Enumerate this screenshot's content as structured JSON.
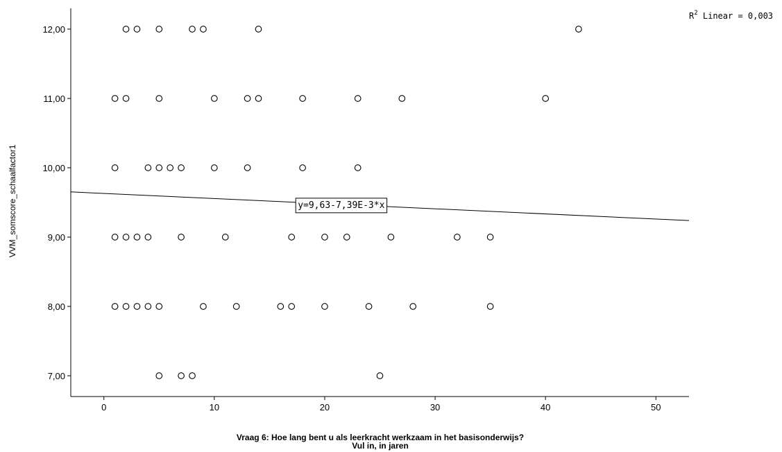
{
  "chart_data": {
    "type": "scatter",
    "xlabel_line1": "Vraag 6: Hoe lang bent u als leerkracht werkzaam in het basisonderwijs?",
    "xlabel_line2": "Vul in, in jaren",
    "ylabel": "VVM_somscore_schaalfactor1",
    "xlim": [
      -3,
      53
    ],
    "ylim": [
      6.7,
      12.3
    ],
    "xticks": [
      0,
      10,
      20,
      30,
      40,
      50
    ],
    "xtick_labels": [
      "0",
      "10",
      "20",
      "30",
      "40",
      "50"
    ],
    "yticks": [
      7,
      8,
      9,
      10,
      11,
      12
    ],
    "ytick_labels": [
      "7,00",
      "8,00",
      "9,00",
      "10,00",
      "11,00",
      "12,00"
    ],
    "grid": false,
    "points": [
      {
        "x": 2,
        "y": 12
      },
      {
        "x": 3,
        "y": 12
      },
      {
        "x": 5,
        "y": 12
      },
      {
        "x": 8,
        "y": 12
      },
      {
        "x": 9,
        "y": 12
      },
      {
        "x": 14,
        "y": 12
      },
      {
        "x": 43,
        "y": 12
      },
      {
        "x": 1,
        "y": 11
      },
      {
        "x": 2,
        "y": 11
      },
      {
        "x": 5,
        "y": 11
      },
      {
        "x": 10,
        "y": 11
      },
      {
        "x": 13,
        "y": 11
      },
      {
        "x": 14,
        "y": 11
      },
      {
        "x": 18,
        "y": 11
      },
      {
        "x": 23,
        "y": 11
      },
      {
        "x": 27,
        "y": 11
      },
      {
        "x": 40,
        "y": 11
      },
      {
        "x": 1,
        "y": 10
      },
      {
        "x": 4,
        "y": 10
      },
      {
        "x": 5,
        "y": 10
      },
      {
        "x": 6,
        "y": 10
      },
      {
        "x": 7,
        "y": 10
      },
      {
        "x": 10,
        "y": 10
      },
      {
        "x": 13,
        "y": 10
      },
      {
        "x": 18,
        "y": 10
      },
      {
        "x": 23,
        "y": 10
      },
      {
        "x": 1,
        "y": 9
      },
      {
        "x": 2,
        "y": 9
      },
      {
        "x": 3,
        "y": 9
      },
      {
        "x": 4,
        "y": 9
      },
      {
        "x": 7,
        "y": 9
      },
      {
        "x": 11,
        "y": 9
      },
      {
        "x": 17,
        "y": 9
      },
      {
        "x": 20,
        "y": 9
      },
      {
        "x": 22,
        "y": 9
      },
      {
        "x": 26,
        "y": 9
      },
      {
        "x": 32,
        "y": 9
      },
      {
        "x": 35,
        "y": 9
      },
      {
        "x": 1,
        "y": 8
      },
      {
        "x": 2,
        "y": 8
      },
      {
        "x": 3,
        "y": 8
      },
      {
        "x": 4,
        "y": 8
      },
      {
        "x": 5,
        "y": 8
      },
      {
        "x": 9,
        "y": 8
      },
      {
        "x": 12,
        "y": 8
      },
      {
        "x": 16,
        "y": 8
      },
      {
        "x": 17,
        "y": 8
      },
      {
        "x": 20,
        "y": 8
      },
      {
        "x": 24,
        "y": 8
      },
      {
        "x": 28,
        "y": 8
      },
      {
        "x": 35,
        "y": 8
      },
      {
        "x": 5,
        "y": 7
      },
      {
        "x": 7,
        "y": 7
      },
      {
        "x": 8,
        "y": 7
      },
      {
        "x": 25,
        "y": 7
      }
    ],
    "fit_line": {
      "intercept": 9.63,
      "slope": -0.00739
    },
    "fit_label": "y=9,63-7,39E-3*x",
    "fit_label_x": 21.5,
    "r2_label_prefix": "R",
    "r2_label_sup": "2",
    "r2_label_suffix": " Linear = 0,003"
  }
}
